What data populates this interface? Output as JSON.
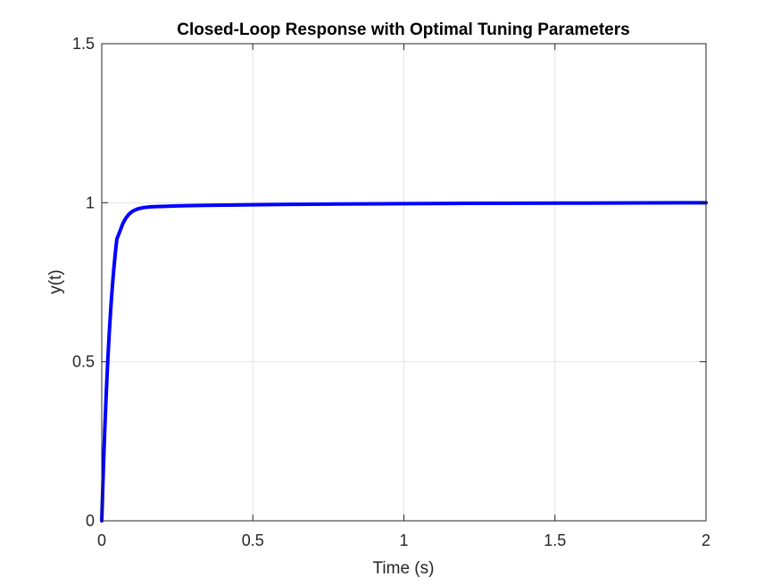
{
  "chart_data": {
    "type": "line",
    "title": "Closed-Loop Response with Optimal Tuning Parameters",
    "xlabel": "Time (s)",
    "ylabel": "y(t)",
    "xlim": [
      0,
      2
    ],
    "ylim": [
      0,
      1.5
    ],
    "xticks": [
      0,
      0.5,
      1,
      1.5,
      2
    ],
    "xtick_labels": [
      "0",
      "0.5",
      "1",
      "1.5",
      "2"
    ],
    "yticks": [
      0,
      0.5,
      1,
      1.5
    ],
    "ytick_labels": [
      "0",
      "0.5",
      "1",
      "1.5"
    ],
    "grid": true,
    "legend": "none",
    "series": [
      {
        "color": "#0000ff",
        "x": [
          0,
          0.005,
          0.01,
          0.015,
          0.02,
          0.025,
          0.03,
          0.035,
          0.04,
          0.045,
          0.05,
          0.06,
          0.07,
          0.08,
          0.09,
          0.1,
          0.11,
          0.12,
          0.13,
          0.14,
          0.15,
          0.16,
          0.18,
          0.2,
          0.22,
          0.25,
          0.3,
          0.4,
          0.5,
          0.6,
          0.8,
          1.0,
          1.2,
          1.4,
          1.6,
          1.8,
          2.0
        ],
        "y": [
          0,
          0.153,
          0.287,
          0.404,
          0.505,
          0.593,
          0.67,
          0.736,
          0.793,
          0.843,
          0.886,
          0.91,
          0.935,
          0.952,
          0.964,
          0.972,
          0.977,
          0.981,
          0.983,
          0.985,
          0.986,
          0.987,
          0.988,
          0.9885,
          0.989,
          0.99,
          0.991,
          0.9925,
          0.9935,
          0.9945,
          0.996,
          0.997,
          0.998,
          0.9985,
          0.999,
          0.9995,
          1.0
        ]
      }
    ]
  }
}
